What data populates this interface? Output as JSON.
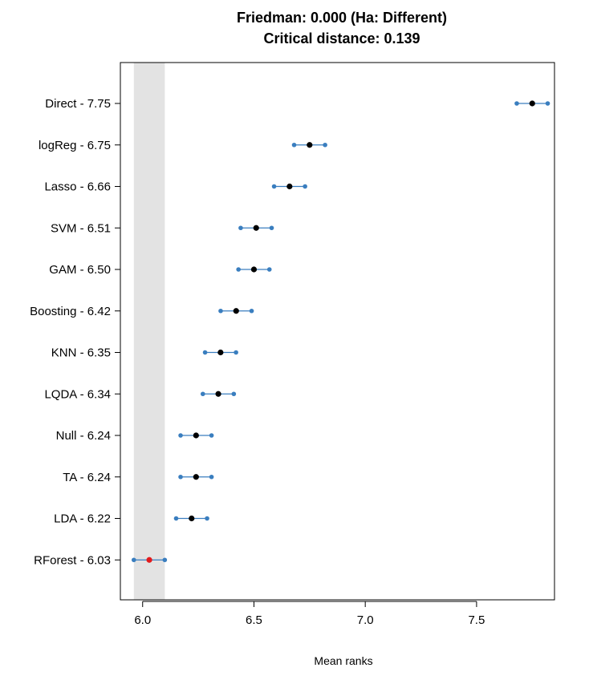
{
  "chart_data": {
    "type": "scatter",
    "title": "Friedman: 0.000 (Ha: Different)",
    "subtitle": "Critical distance: 0.139",
    "xlabel": "Mean ranks",
    "ylabel": "",
    "xlim": [
      5.9,
      7.85
    ],
    "xticks": [
      "6.0",
      "6.5",
      "7.0",
      "7.5"
    ],
    "critical_distance": 0.139,
    "grid": false,
    "legend": "none",
    "colors": {
      "interval": "#3a7ebf",
      "point": "#000000",
      "best_point": "#e31a1c",
      "band": "#e3e3e3"
    },
    "categories": [
      "Direct - 7.75",
      "logReg - 6.75",
      "Lasso - 6.66",
      "SVM - 6.51",
      "GAM - 6.50",
      "Boosting - 6.42",
      "KNN - 6.35",
      "LQDA - 6.34",
      "Null - 6.24",
      "TA - 6.24",
      "LDA - 6.22",
      "RForest - 6.03"
    ],
    "values": [
      7.75,
      6.75,
      6.66,
      6.51,
      6.5,
      6.42,
      6.35,
      6.34,
      6.24,
      6.24,
      6.22,
      6.03
    ],
    "best_index": 11
  }
}
